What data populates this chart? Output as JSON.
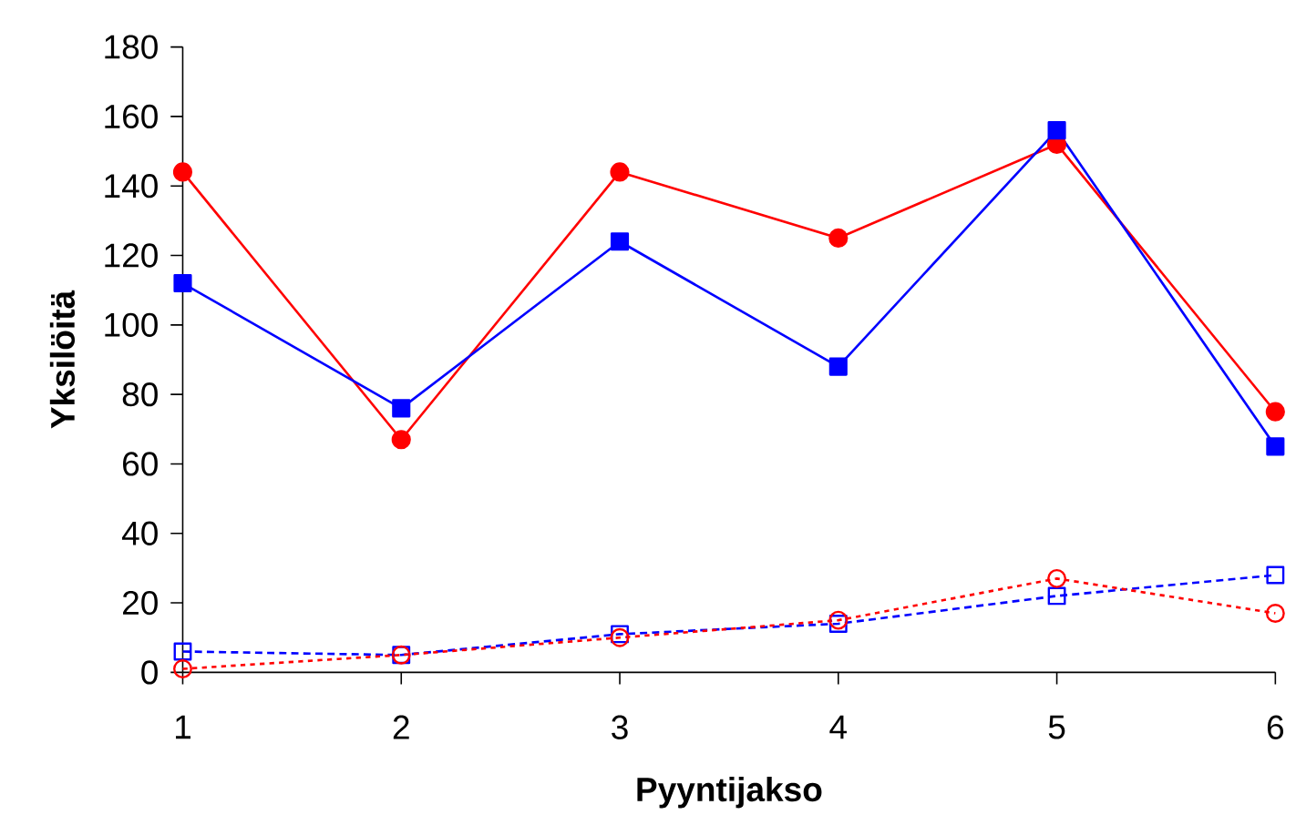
{
  "chart_data": {
    "type": "line",
    "xlabel": "Pyyntijakso",
    "ylabel": "Yksilöitä",
    "categories": [
      "1",
      "2",
      "3",
      "4",
      "5",
      "6"
    ],
    "series": [
      {
        "color": "#ff0000",
        "marker": "circle",
        "line_style": "solid",
        "values": [
          144,
          67,
          144,
          125,
          152,
          75
        ]
      },
      {
        "color": "#0000ff",
        "marker": "square",
        "line_style": "solid",
        "values": [
          112,
          76,
          124,
          88,
          156,
          65
        ]
      },
      {
        "color": "#0000ff",
        "marker": "square",
        "line_style": "dashed",
        "values": [
          6,
          5,
          11,
          14,
          22,
          28
        ]
      },
      {
        "color": "#ff0000",
        "marker": "circle",
        "line_style": "dotted",
        "values": [
          1,
          5,
          10,
          15,
          27,
          17
        ]
      }
    ],
    "ylim": [
      0,
      180
    ],
    "yticks": [
      0,
      20,
      40,
      60,
      80,
      100,
      120,
      140,
      160,
      180
    ],
    "grid": false
  }
}
